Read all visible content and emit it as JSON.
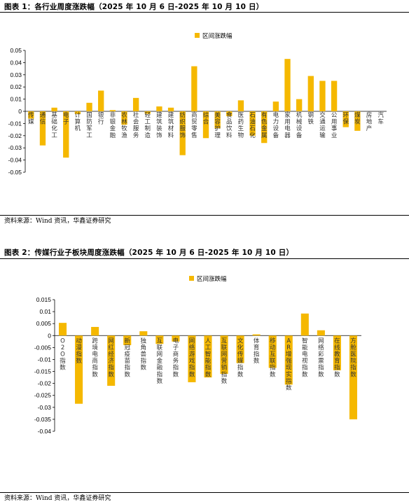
{
  "figure1": {
    "title": "图表 1：各行业周度涨跌幅（2025 年 10 月 6 日-2025 年 10 月 10 日）",
    "source": "资料来源：Wind 资讯，华鑫证券研究",
    "accent_color": "#F5B800"
  },
  "figure2": {
    "title": "图表 2：传媒行业子板块周度涨跌幅（2025 年 10 月 6 日-2025 年 10 月 10 日）",
    "source": "资料来源：Wind 资讯，华鑫证券研究",
    "accent_color": "#F5B800"
  },
  "chart_data": [
    {
      "type": "bar",
      "legend": [
        "区间涨跌幅"
      ],
      "legend_position": "top-center",
      "grid": false,
      "ylim": [
        -0.05,
        0.05
      ],
      "yticks": [
        0.05,
        0.04,
        0.03,
        0.02,
        0.01,
        0,
        -0.01,
        -0.02,
        -0.03,
        -0.04,
        -0.05
      ],
      "ytick_labels": [
        "0.05",
        "0.04",
        "0.03",
        "0.02",
        "0.01",
        "0",
        "-0.01",
        "-0.02",
        "-0.03",
        "-0.04",
        "-0.05"
      ],
      "categories": [
        "传媒",
        "通信",
        "基础化工",
        "电子",
        "计算机",
        "国防军工",
        "银行",
        "非银金融",
        "农林牧渔",
        "社会服务",
        "轻工制造",
        "建筑装饰",
        "建筑材料",
        "纺织服饰",
        "商贸零售",
        "综合",
        "美容护理",
        "食品饮料",
        "医药生物",
        "石油石化",
        "有色金属",
        "电力设备",
        "家用电器",
        "机械设备",
        "钢铁",
        "交通运输",
        "公用事业",
        "环保",
        "煤炭",
        "房地产",
        "汽车"
      ],
      "series": [
        {
          "name": "区间涨跌幅",
          "values": [
            -0.006,
            -0.028,
            0.003,
            -0.038,
            -0.002,
            0.007,
            0.017,
            0.001,
            -0.011,
            0.011,
            -0.002,
            0.004,
            0.003,
            -0.036,
            0.037,
            -0.022,
            -0.014,
            -0.004,
            0.009,
            -0.02,
            -0.026,
            0.008,
            0.043,
            0.01,
            0.029,
            0.025,
            0.025,
            -0.013,
            -0.016,
            0,
            0
          ]
        }
      ]
    },
    {
      "type": "bar",
      "legend": [
        "区间涨跌幅"
      ],
      "legend_position": "top-center",
      "grid": false,
      "ylim": [
        -0.04,
        0.015
      ],
      "yticks": [
        0.015,
        0.01,
        0.005,
        0,
        -0.005,
        -0.01,
        -0.015,
        -0.02,
        -0.025,
        -0.03,
        -0.035,
        -0.04
      ],
      "ytick_labels": [
        "0.015",
        "0.01",
        "0.005",
        "0",
        "-0.005",
        "-0.01",
        "-0.015",
        "-0.02",
        "-0.025",
        "-0.03",
        "-0.035",
        "-0.04"
      ],
      "categories": [
        "O2O指数",
        "动漫指数",
        "跨境电商指数",
        "网红经济指数",
        "新冠疫苗指数",
        "独角兽指数",
        "互联网金融指数",
        "电子商务指数",
        "网络游戏指数",
        "人工智能指数",
        "互联网营销指数",
        "文化传媒指数",
        "体育指数",
        "移动互联指数",
        "AR增强现实指数",
        "智能电视指数",
        "网络彩票指数",
        "在线教育指数",
        "方舱医院指数"
      ],
      "series": [
        {
          "name": "区间涨跌幅",
          "values": [
            0.0053,
            -0.0285,
            0.0036,
            -0.021,
            -0.004,
            0.0018,
            -0.0035,
            -0.0025,
            -0.0195,
            -0.0175,
            -0.016,
            -0.0115,
            0.0005,
            -0.0135,
            -0.0205,
            0.0092,
            0.0022,
            -0.0145,
            -0.035
          ]
        }
      ]
    }
  ]
}
